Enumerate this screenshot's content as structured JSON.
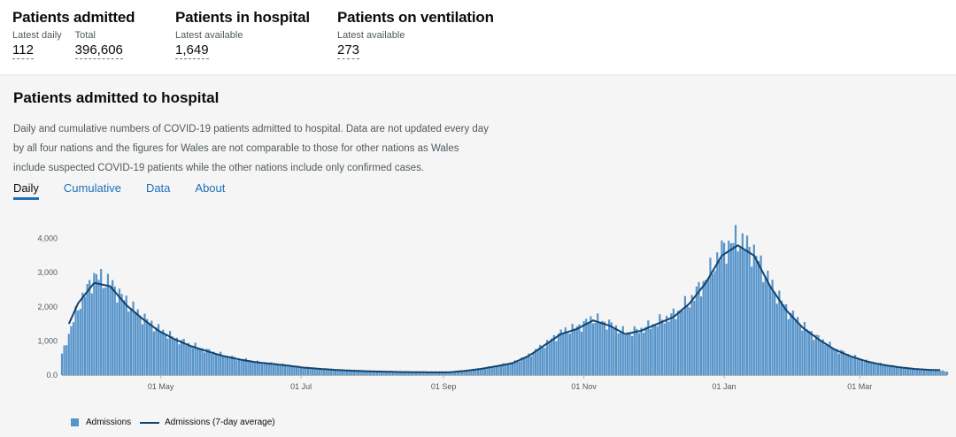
{
  "headline": {
    "admitted": {
      "title": "Patients admitted",
      "latest_label": "Latest daily",
      "latest_value": "112",
      "total_label": "Total",
      "total_value": "396,606"
    },
    "in_hospital": {
      "title": "Patients in hospital",
      "label": "Latest available",
      "value": "1,649"
    },
    "ventilation": {
      "title": "Patients on ventilation",
      "label": "Latest available",
      "value": "273"
    }
  },
  "card": {
    "title": "Patients admitted to hospital",
    "description": "Daily and cumulative numbers of COVID-19 patients admitted to hospital. Data are not updated every day by all four nations and the figures for Wales are not comparable to those for other nations as Wales include suspected COVID-19 patients while the other nations include only confirmed cases.",
    "tabs": [
      "Daily",
      "Cumulative",
      "Data",
      "About"
    ],
    "active_tab": "Daily"
  },
  "colors": {
    "bar": "#5694ca",
    "line": "#12436d",
    "tab_accent": "#1d70b8"
  },
  "chart_data": {
    "type": "bar",
    "x_ticks": [
      "01 May",
      "01 Jul",
      "01 Sep",
      "01 Nov",
      "01 Jan",
      "01 Mar"
    ],
    "y_ticks": [
      "0.0",
      "1,000",
      "2,000",
      "3,000",
      "4,000"
    ],
    "ylim": [
      0,
      4300
    ],
    "grid": false,
    "legend_position": "bottom-left",
    "series": [
      {
        "name": "Admissions",
        "type": "bar"
      },
      {
        "name": "Admissions (7-day average)",
        "type": "line"
      }
    ],
    "weekly_keyframes": {
      "dates": [
        "2020-03-19",
        "2020-03-26",
        "2020-04-02",
        "2020-04-09",
        "2020-04-16",
        "2020-04-23",
        "2020-04-30",
        "2020-05-07",
        "2020-05-14",
        "2020-05-21",
        "2020-05-28",
        "2020-06-04",
        "2020-06-11",
        "2020-06-18",
        "2020-06-25",
        "2020-07-02",
        "2020-07-16",
        "2020-07-30",
        "2020-08-13",
        "2020-08-27",
        "2020-09-03",
        "2020-09-10",
        "2020-09-17",
        "2020-09-24",
        "2020-10-01",
        "2020-10-08",
        "2020-10-15",
        "2020-10-22",
        "2020-10-29",
        "2020-11-05",
        "2020-11-12",
        "2020-11-19",
        "2020-11-26",
        "2020-12-03",
        "2020-12-10",
        "2020-12-17",
        "2020-12-24",
        "2020-12-31",
        "2021-01-07",
        "2021-01-14",
        "2021-01-21",
        "2021-01-28",
        "2021-02-04",
        "2021-02-11",
        "2021-02-18",
        "2021-02-25",
        "2021-03-04",
        "2021-03-11",
        "2021-03-18",
        "2021-03-25",
        "2021-04-01",
        "2021-04-08"
      ],
      "avg": [
        1050,
        2100,
        2700,
        2600,
        2050,
        1650,
        1300,
        1050,
        850,
        700,
        560,
        460,
        380,
        330,
        280,
        220,
        150,
        110,
        90,
        80,
        80,
        120,
        180,
        260,
        350,
        560,
        880,
        1200,
        1350,
        1600,
        1450,
        1200,
        1300,
        1500,
        1700,
        2100,
        2700,
        3500,
        3800,
        3500,
        2600,
        1900,
        1400,
        1050,
        750,
        550,
        400,
        300,
        230,
        180,
        150,
        140
      ],
      "admissions": [
        600,
        2000,
        2900,
        2700,
        2150,
        1700,
        1350,
        1080,
        880,
        720,
        580,
        470,
        390,
        335,
        285,
        225,
        155,
        115,
        92,
        82,
        80,
        125,
        185,
        270,
        360,
        580,
        900,
        1250,
        1400,
        1650,
        1500,
        1230,
        1330,
        1550,
        1760,
        2150,
        2800,
        3650,
        4000,
        3600,
        2700,
        1950,
        1450,
        1080,
        780,
        560,
        410,
        305,
        235,
        185,
        150,
        112
      ]
    }
  }
}
